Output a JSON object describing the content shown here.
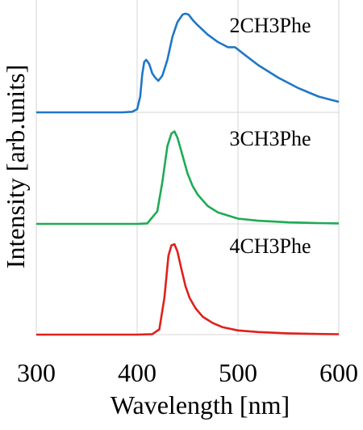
{
  "chart_data": {
    "type": "line",
    "xlabel": "Wavelength  [nm]",
    "ylabel": "Intensity [arb.units]",
    "xlim": [
      300,
      600
    ],
    "xticks": [
      300,
      400,
      500,
      600
    ],
    "xtick_labels": [
      "300",
      "400",
      "500",
      "600"
    ],
    "ylim": [
      0,
      1
    ],
    "grid": "vertical gridlines at x ticks",
    "layout": "three stacked panels sharing the x axis",
    "series": [
      {
        "name": "2CH3Phe",
        "color": "#1f77c8",
        "x": [
          300,
          330,
          360,
          385,
          395,
          400,
          403,
          405,
          407,
          409,
          412,
          415,
          418,
          421,
          425,
          430,
          435,
          440,
          445,
          448,
          451,
          455,
          460,
          470,
          480,
          490,
          497,
          505,
          520,
          540,
          560,
          580,
          600
        ],
        "y": [
          0.0,
          0.0,
          0.0,
          0.0,
          0.005,
          0.03,
          0.15,
          0.36,
          0.48,
          0.5,
          0.46,
          0.37,
          0.33,
          0.3,
          0.35,
          0.5,
          0.72,
          0.86,
          0.93,
          0.94,
          0.93,
          0.88,
          0.83,
          0.74,
          0.67,
          0.62,
          0.62,
          0.56,
          0.45,
          0.33,
          0.23,
          0.15,
          0.1
        ]
      },
      {
        "name": "3CH3Phe",
        "color": "#1faa55",
        "x": [
          300,
          380,
          400,
          410,
          420,
          425,
          430,
          434,
          437,
          440,
          445,
          450,
          455,
          460,
          470,
          480,
          500,
          520,
          550,
          580,
          600
        ],
        "y": [
          0.0,
          0.0,
          0.0,
          0.005,
          0.12,
          0.4,
          0.74,
          0.86,
          0.88,
          0.82,
          0.65,
          0.48,
          0.36,
          0.28,
          0.17,
          0.11,
          0.05,
          0.03,
          0.015,
          0.008,
          0.005
        ]
      },
      {
        "name": "4CH3Phe",
        "color": "#e0201b",
        "x": [
          300,
          400,
          415,
          422,
          427,
          431,
          434,
          437,
          440,
          444,
          448,
          452,
          458,
          465,
          475,
          485,
          500,
          520,
          550,
          580,
          600
        ],
        "y": [
          0.0,
          0.0,
          0.005,
          0.05,
          0.35,
          0.75,
          0.85,
          0.86,
          0.79,
          0.62,
          0.46,
          0.35,
          0.25,
          0.17,
          0.11,
          0.07,
          0.04,
          0.025,
          0.012,
          0.006,
          0.004
        ]
      }
    ]
  }
}
